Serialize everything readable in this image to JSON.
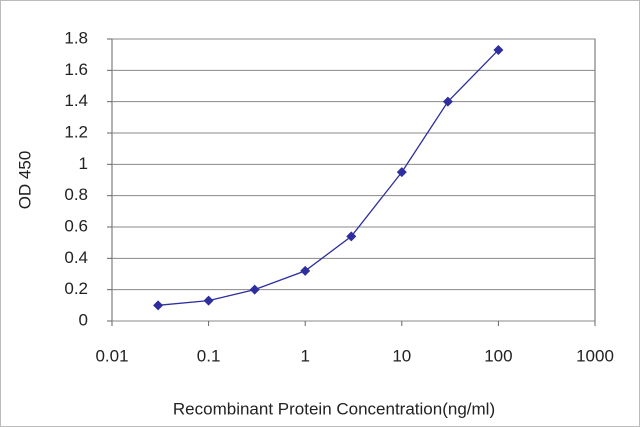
{
  "chart_data": {
    "type": "line",
    "xlabel": "Recombinant Protein Concentration(ng/ml)",
    "ylabel": "OD 450",
    "x": [
      0.03,
      0.1,
      0.3,
      1,
      3,
      10,
      30,
      100
    ],
    "values": [
      0.1,
      0.13,
      0.2,
      0.32,
      0.54,
      0.95,
      1.4,
      1.73
    ],
    "color": "#2e2e9e",
    "xscale": "log",
    "xlim": [
      0.01,
      1000
    ],
    "xticks": [
      0.01,
      0.1,
      1,
      10,
      100,
      1000
    ],
    "ylim": [
      0,
      1.8
    ],
    "yticks": [
      0,
      0.2,
      0.4,
      0.6,
      0.8,
      1,
      1.2,
      1.4,
      1.6,
      1.8
    ],
    "grid": true
  }
}
